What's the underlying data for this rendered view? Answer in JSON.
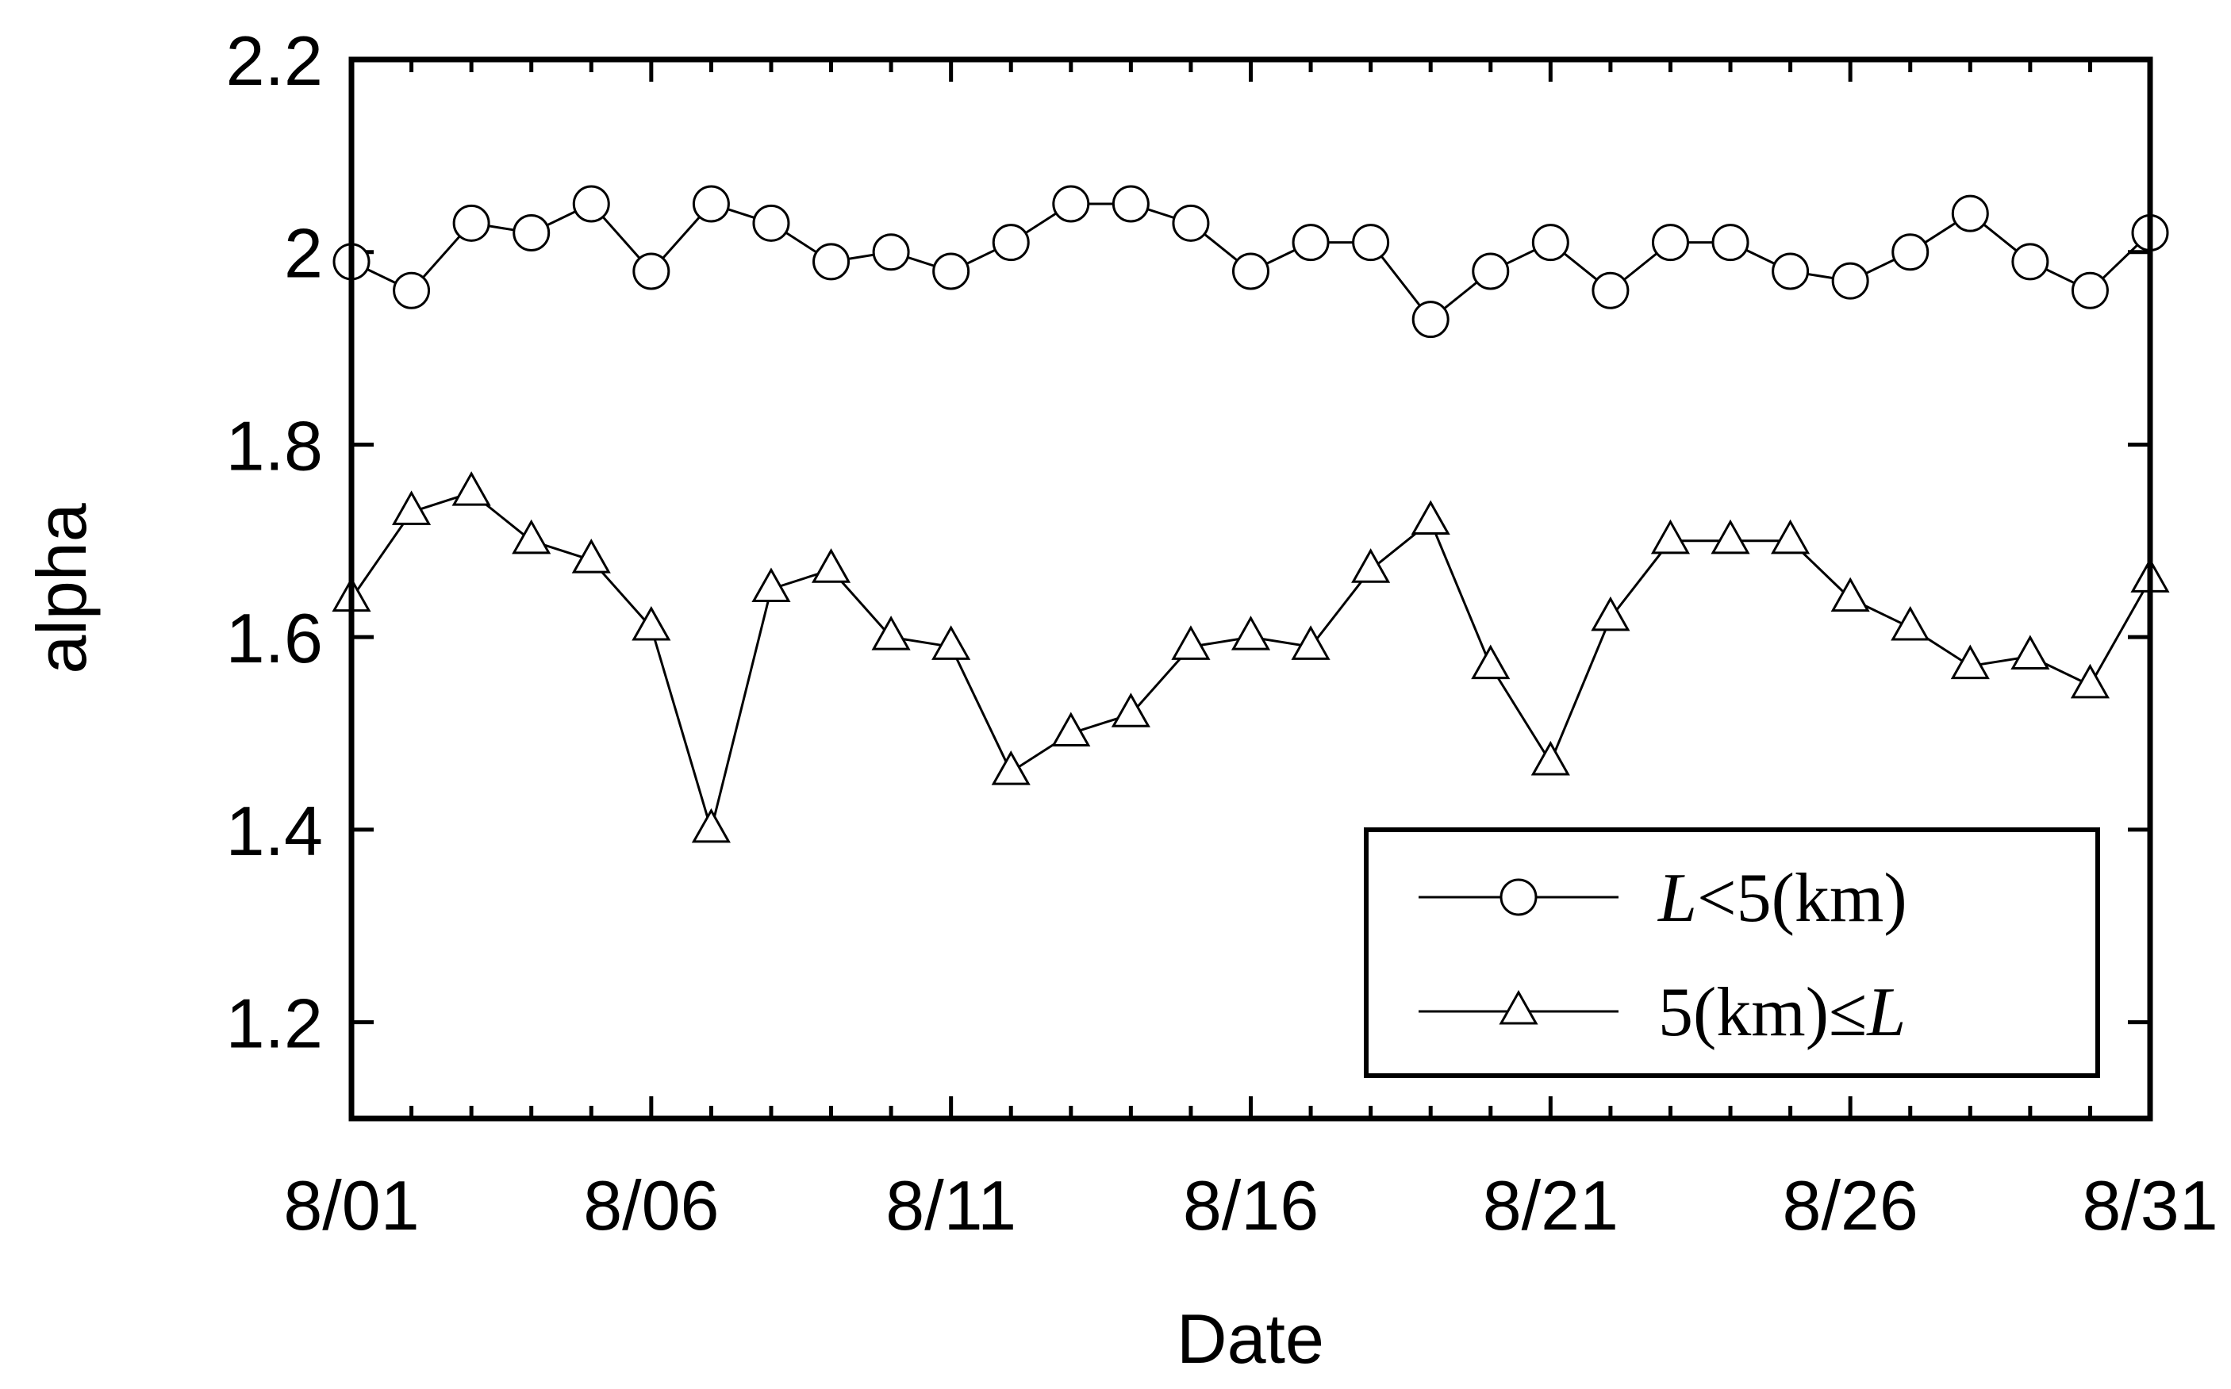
{
  "chart_data": {
    "type": "line",
    "xlabel": "Date",
    "ylabel": "alpha",
    "ylim": [
      1.1,
      2.2
    ],
    "x_range": [
      "8/01",
      "8/31"
    ],
    "x_ticks": [
      "8/01",
      "8/06",
      "8/11",
      "8/16",
      "8/21",
      "8/26",
      "8/31"
    ],
    "y_ticks": [
      "1.2",
      "1.4",
      "1.6",
      "1.8",
      "2",
      "2.2"
    ],
    "y_tick_values": [
      1.2,
      1.4,
      1.6,
      1.8,
      2.0,
      2.2
    ],
    "grid": false,
    "legend_position": "bottom-right",
    "x": [
      "8/01",
      "8/02",
      "8/03",
      "8/04",
      "8/05",
      "8/06",
      "8/07",
      "8/08",
      "8/09",
      "8/10",
      "8/11",
      "8/12",
      "8/13",
      "8/14",
      "8/15",
      "8/16",
      "8/17",
      "8/18",
      "8/19",
      "8/20",
      "8/21",
      "8/22",
      "8/23",
      "8/24",
      "8/25",
      "8/26",
      "8/27",
      "8/28",
      "8/29",
      "8/30",
      "8/31"
    ],
    "series": [
      {
        "name": "L<5(km)",
        "name_parts": [
          "L",
          "<5(km)"
        ],
        "marker": "circle",
        "values": [
          1.99,
          1.96,
          2.03,
          2.02,
          2.05,
          1.98,
          2.05,
          2.03,
          1.99,
          2.0,
          1.98,
          2.01,
          2.05,
          2.05,
          2.03,
          1.98,
          2.01,
          2.01,
          1.93,
          1.98,
          2.01,
          1.96,
          2.01,
          2.01,
          1.98,
          1.97,
          2.0,
          2.04,
          1.99,
          1.96,
          2.02
        ]
      },
      {
        "name": "5(km)≤L",
        "name_parts": [
          "5(km)≤",
          "L"
        ],
        "marker": "triangle",
        "values": [
          1.64,
          1.73,
          1.75,
          1.7,
          1.68,
          1.61,
          1.4,
          1.65,
          1.67,
          1.6,
          1.59,
          1.46,
          1.5,
          1.52,
          1.59,
          1.6,
          1.59,
          1.67,
          1.72,
          1.57,
          1.47,
          1.62,
          1.7,
          1.7,
          1.7,
          1.64,
          1.61,
          1.57,
          1.58,
          1.55,
          1.66
        ]
      }
    ]
  }
}
